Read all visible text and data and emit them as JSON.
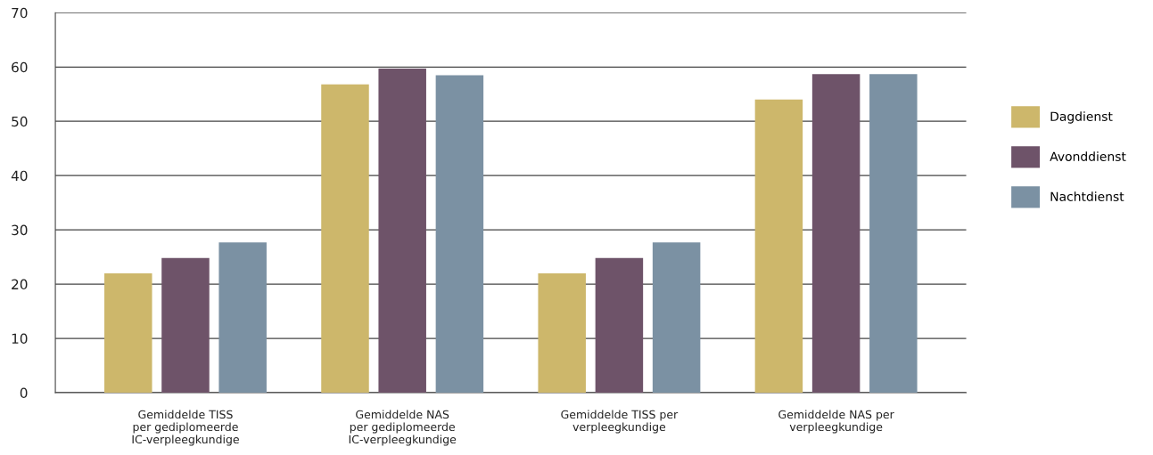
{
  "chart_data": {
    "type": "bar",
    "categories": [
      "Gemiddelde TISS\nper gediplomeerde\nIC-verpleegkundige",
      "Gemiddelde NAS\nper gediplomeerde\nIC-verpleegkundige",
      "Gemiddelde TISS per\nverpleegkundige",
      "Gemiddelde NAS per\nverpleegkundige"
    ],
    "series": [
      {
        "name": "Dagdienst",
        "color": "#cdb76b",
        "values": [
          22.0,
          56.8,
          22.0,
          54.0
        ]
      },
      {
        "name": "Avonddienst",
        "color": "#6e5369",
        "values": [
          24.8,
          59.7,
          24.8,
          58.7
        ]
      },
      {
        "name": "Nachtdienst",
        "color": "#7b91a3",
        "values": [
          27.7,
          58.5,
          27.7,
          58.7
        ]
      }
    ],
    "ylim": [
      0,
      70
    ],
    "yticks": [
      0,
      10,
      20,
      30,
      40,
      50,
      60,
      70
    ],
    "grid": "y",
    "legend": "right"
  }
}
